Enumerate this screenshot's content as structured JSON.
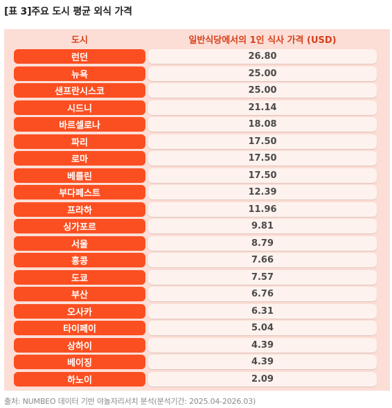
{
  "title": "[표 3]주요 도시 평균 외식 가격",
  "table": {
    "headers": {
      "city": "도시",
      "price": "일반식당에서의 1인 식사 가격 (USD)"
    },
    "rows": [
      {
        "city": "런던",
        "price": "26.80"
      },
      {
        "city": "뉴욕",
        "price": "25.00"
      },
      {
        "city": "샌프란시스코",
        "price": "25.00"
      },
      {
        "city": "시드니",
        "price": "21.14"
      },
      {
        "city": "바르셀로나",
        "price": "18.08"
      },
      {
        "city": "파리",
        "price": "17.50"
      },
      {
        "city": "로마",
        "price": "17.50"
      },
      {
        "city": "베를린",
        "price": "17.50"
      },
      {
        "city": "부다페스트",
        "price": "12.39"
      },
      {
        "city": "프라하",
        "price": "11.96"
      },
      {
        "city": "싱가포르",
        "price": "9.81"
      },
      {
        "city": "서울",
        "price": "8.79"
      },
      {
        "city": "홍콩",
        "price": "7.66"
      },
      {
        "city": "도쿄",
        "price": "7.57"
      },
      {
        "city": "부산",
        "price": "6.76"
      },
      {
        "city": "오사카",
        "price": "6.31"
      },
      {
        "city": "타이페이",
        "price": "5.04"
      },
      {
        "city": "상하이",
        "price": "4.39"
      },
      {
        "city": "베이징",
        "price": "4.39"
      },
      {
        "city": "하노이",
        "price": "2.09"
      }
    ]
  },
  "source": "출처: NUMBEO 데이터 기반 야놀자리서치 분석(분석기간: 2025.04-2026.03)",
  "colors": {
    "city_cell_bg": "#fb4f21",
    "panel_bg": "#fcded6",
    "price_cell_bg": "#fdf2ee",
    "header_text": "#d6401b"
  }
}
